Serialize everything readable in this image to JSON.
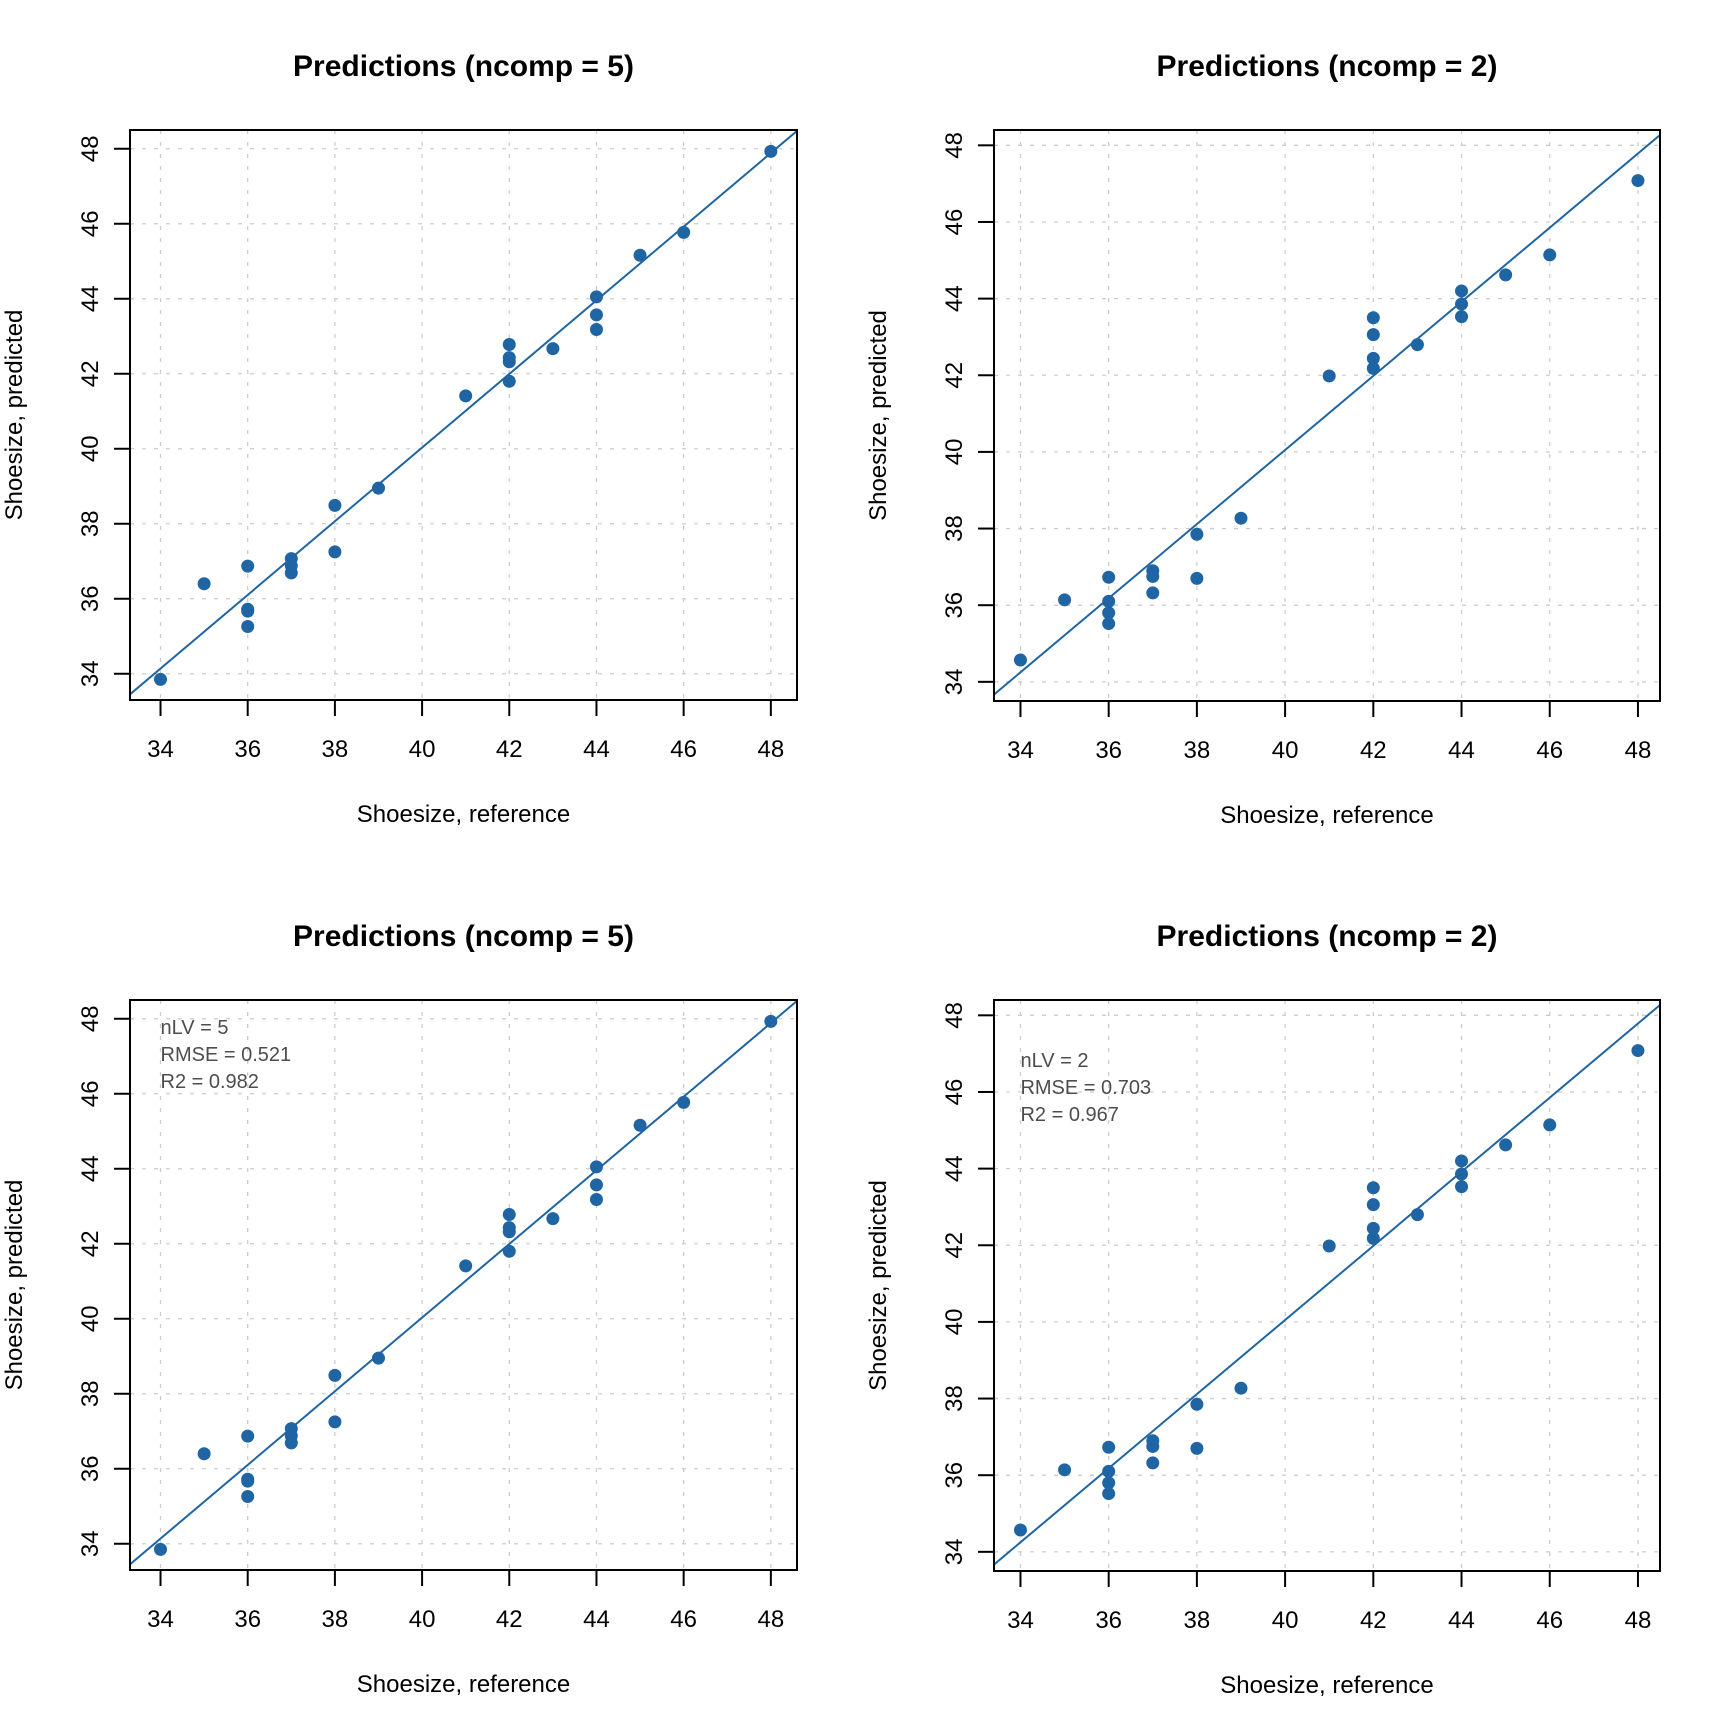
{
  "chart_data": [
    {
      "type": "scatter",
      "title": "Predictions (ncomp = 5)",
      "xlabel": "Shoesize, reference",
      "ylabel": "Shoesize, predicted",
      "xlim": [
        33.3,
        48.6
      ],
      "ylim": [
        33.3,
        48.5
      ],
      "xticks": [
        34,
        36,
        38,
        40,
        42,
        44,
        46,
        48
      ],
      "yticks": [
        34,
        36,
        38,
        40,
        42,
        44,
        46,
        48
      ],
      "grid": true,
      "color": "#2065a3",
      "line": {
        "slope": 0.982,
        "intercept": 0.75
      },
      "annotation": [],
      "x": [
        34,
        35,
        36,
        36,
        36,
        36,
        37,
        37,
        37,
        38,
        38,
        39,
        41,
        42,
        42,
        42,
        42,
        43,
        44,
        44,
        44,
        45,
        46,
        48
      ],
      "y": [
        33.85,
        36.4,
        36.87,
        35.72,
        35.67,
        35.26,
        37.07,
        36.88,
        36.69,
        38.49,
        37.25,
        38.95,
        41.41,
        42.78,
        42.43,
        42.32,
        41.8,
        42.67,
        44.05,
        43.57,
        43.18,
        45.16,
        45.77,
        47.93
      ]
    },
    {
      "type": "scatter",
      "title": "Predictions (ncomp = 2)",
      "xlabel": "Shoesize, reference",
      "ylabel": "Shoesize, predicted",
      "xlim": [
        33.4,
        48.5
      ],
      "ylim": [
        33.5,
        48.4
      ],
      "xticks": [
        34,
        36,
        38,
        40,
        42,
        44,
        46,
        48
      ],
      "yticks": [
        34,
        36,
        38,
        40,
        42,
        44,
        46,
        48
      ],
      "grid": true,
      "color": "#2065a3",
      "line": {
        "slope": 0.967,
        "intercept": 1.37
      },
      "annotation": [],
      "x": [
        34,
        35,
        36,
        36,
        36,
        36,
        37,
        37,
        37,
        38,
        38,
        39,
        41,
        42,
        42,
        42,
        42,
        43,
        44,
        44,
        44,
        45,
        46,
        48
      ],
      "y": [
        34.57,
        36.14,
        36.73,
        36.1,
        35.8,
        35.52,
        36.9,
        36.75,
        36.32,
        37.85,
        36.7,
        38.27,
        41.98,
        43.5,
        43.06,
        42.44,
        42.18,
        42.8,
        44.2,
        43.86,
        43.53,
        44.62,
        45.14,
        47.08
      ]
    },
    {
      "type": "scatter",
      "title": "Predictions (ncomp = 5)",
      "xlabel": "Shoesize, reference",
      "ylabel": "Shoesize, predicted",
      "xlim": [
        33.3,
        48.6
      ],
      "ylim": [
        33.3,
        48.5
      ],
      "xticks": [
        34,
        36,
        38,
        40,
        42,
        44,
        46,
        48
      ],
      "yticks": [
        34,
        36,
        38,
        40,
        42,
        44,
        46,
        48
      ],
      "grid": true,
      "color": "#2065a3",
      "line": {
        "slope": 0.982,
        "intercept": 0.75
      },
      "annotation": [
        "nLV = 5",
        "RMSE = 0.521",
        "R2 = 0.982"
      ],
      "annotation_placement": "top-left",
      "x": [
        34,
        35,
        36,
        36,
        36,
        36,
        37,
        37,
        37,
        38,
        38,
        39,
        41,
        42,
        42,
        42,
        42,
        43,
        44,
        44,
        44,
        45,
        46,
        48
      ],
      "y": [
        33.85,
        36.4,
        36.87,
        35.72,
        35.67,
        35.26,
        37.07,
        36.88,
        36.69,
        38.49,
        37.25,
        38.95,
        41.41,
        42.78,
        42.43,
        42.32,
        41.8,
        42.67,
        44.05,
        43.57,
        43.18,
        45.16,
        45.77,
        47.93
      ]
    },
    {
      "type": "scatter",
      "title": "Predictions (ncomp = 2)",
      "xlabel": "Shoesize, reference",
      "ylabel": "Shoesize, predicted",
      "xlim": [
        33.4,
        48.5
      ],
      "ylim": [
        33.5,
        48.4
      ],
      "xticks": [
        34,
        36,
        38,
        40,
        42,
        44,
        46,
        48
      ],
      "yticks": [
        34,
        36,
        38,
        40,
        42,
        44,
        46,
        48
      ],
      "grid": true,
      "color": "#2065a3",
      "line": {
        "slope": 0.967,
        "intercept": 1.37
      },
      "annotation": [
        "nLV = 2",
        "RMSE = 0.703",
        "R2 = 0.967"
      ],
      "annotation_placement": "top-left",
      "x": [
        34,
        35,
        36,
        36,
        36,
        36,
        37,
        37,
        37,
        38,
        38,
        39,
        41,
        42,
        42,
        42,
        42,
        43,
        44,
        44,
        44,
        45,
        46,
        48
      ],
      "y": [
        34.57,
        36.14,
        36.73,
        36.1,
        35.8,
        35.52,
        36.9,
        36.75,
        36.32,
        37.85,
        36.7,
        38.27,
        41.98,
        43.5,
        43.06,
        42.44,
        42.18,
        42.8,
        44.2,
        43.86,
        43.53,
        44.62,
        45.14,
        47.08
      ]
    }
  ]
}
